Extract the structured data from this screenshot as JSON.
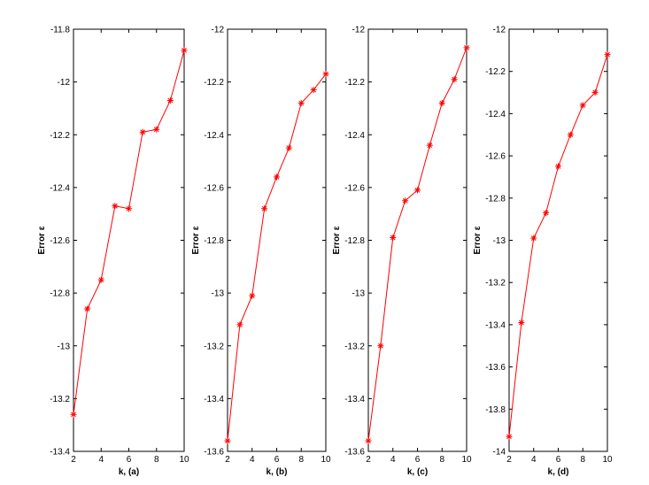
{
  "colors": {
    "line": "#ff0000",
    "axes": "#000000",
    "background": "#ffffff"
  },
  "chart_data": [
    {
      "type": "line",
      "xlabel": "k, (a)",
      "ylabel": "Error ε",
      "xlim": [
        2,
        10
      ],
      "ylim": [
        -13.4,
        -11.8
      ],
      "xticks": [
        2,
        4,
        6,
        8,
        10
      ],
      "yticks": [
        -13.4,
        -13.2,
        -13,
        -12.8,
        -12.6,
        -12.4,
        -12.2,
        -12,
        -11.8
      ],
      "x": [
        2,
        3,
        4,
        5,
        6,
        7,
        8,
        9,
        10
      ],
      "y": [
        -13.26,
        -12.86,
        -12.75,
        -12.47,
        -12.48,
        -12.19,
        -12.18,
        -12.07,
        -11.88
      ],
      "marker": "asterisk",
      "grid": false
    },
    {
      "type": "line",
      "xlabel": "k, (b)",
      "ylabel": "Error ε",
      "xlim": [
        2,
        10
      ],
      "ylim": [
        -13.6,
        -12
      ],
      "xticks": [
        2,
        4,
        6,
        8,
        10
      ],
      "yticks": [
        -13.6,
        -13.4,
        -13.2,
        -13,
        -12.8,
        -12.6,
        -12.4,
        -12.2,
        -12
      ],
      "x": [
        2,
        3,
        4,
        5,
        6,
        7,
        8,
        9,
        10
      ],
      "y": [
        -13.56,
        -13.12,
        -13.01,
        -12.68,
        -12.56,
        -12.45,
        -12.28,
        -12.23,
        -12.17
      ],
      "marker": "asterisk",
      "grid": false
    },
    {
      "type": "line",
      "xlabel": "k, (c)",
      "ylabel": "Error ε",
      "xlim": [
        2,
        10
      ],
      "ylim": [
        -13.6,
        -12
      ],
      "xticks": [
        2,
        4,
        6,
        8,
        10
      ],
      "yticks": [
        -13.6,
        -13.4,
        -13.2,
        -13,
        -12.8,
        -12.6,
        -12.4,
        -12.2,
        -12
      ],
      "x": [
        2,
        3,
        4,
        5,
        6,
        7,
        8,
        9,
        10
      ],
      "y": [
        -13.56,
        -13.2,
        -12.79,
        -12.65,
        -12.61,
        -12.44,
        -12.28,
        -12.19,
        -12.07
      ],
      "marker": "asterisk",
      "grid": false
    },
    {
      "type": "line",
      "xlabel": "k, (d)",
      "ylabel": "Error ε",
      "xlim": [
        2,
        10
      ],
      "ylim": [
        -14,
        -12
      ],
      "xticks": [
        2,
        4,
        6,
        8,
        10
      ],
      "yticks": [
        -14,
        -13.8,
        -13.6,
        -13.4,
        -13.2,
        -13,
        -12.8,
        -12.6,
        -12.4,
        -12.2,
        -12
      ],
      "x": [
        2,
        3,
        4,
        5,
        6,
        7,
        8,
        9,
        10
      ],
      "y": [
        -13.93,
        -13.39,
        -12.99,
        -12.87,
        -12.65,
        -12.5,
        -12.36,
        -12.3,
        -12.12
      ],
      "marker": "asterisk",
      "grid": false
    }
  ]
}
